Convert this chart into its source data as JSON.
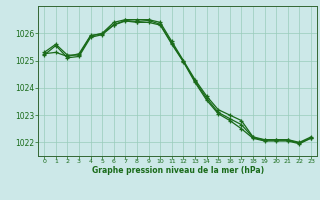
{
  "title": "Graphe pression niveau de la mer (hPa)",
  "background_color": "#cce8e8",
  "grid_color": "#99ccbb",
  "line_color": "#1a6b1a",
  "spine_color": "#336633",
  "xlim": [
    -0.5,
    23.5
  ],
  "ylim": [
    1021.5,
    1027.0
  ],
  "yticks": [
    1022,
    1023,
    1024,
    1025,
    1026
  ],
  "xticks": [
    0,
    1,
    2,
    3,
    4,
    5,
    6,
    7,
    8,
    9,
    10,
    11,
    12,
    13,
    14,
    15,
    16,
    17,
    18,
    19,
    20,
    21,
    22,
    23
  ],
  "series1": {
    "x": [
      0,
      1,
      2,
      3,
      4,
      5,
      6,
      7,
      8,
      9,
      10,
      11,
      12,
      13,
      14,
      15,
      16,
      17,
      18,
      19,
      20,
      21,
      22,
      23
    ],
    "y": [
      1025.3,
      1025.6,
      1025.2,
      1025.2,
      1025.9,
      1026.0,
      1026.4,
      1026.5,
      1026.5,
      1026.5,
      1026.4,
      1025.7,
      1025.0,
      1024.3,
      1023.7,
      1023.2,
      1023.0,
      1022.8,
      1022.2,
      1022.1,
      1022.1,
      1022.1,
      1022.0,
      1022.2
    ]
  },
  "series2": {
    "x": [
      0,
      1,
      2,
      3,
      4,
      5,
      6,
      7,
      8,
      9,
      10,
      11,
      12,
      13,
      14,
      15,
      16,
      17,
      18,
      19,
      20,
      21,
      22,
      23
    ],
    "y": [
      1025.2,
      1025.55,
      1025.1,
      1025.15,
      1025.85,
      1025.95,
      1026.3,
      1026.45,
      1026.4,
      1026.4,
      1026.3,
      1025.6,
      1024.95,
      1024.2,
      1023.55,
      1023.05,
      1022.8,
      1022.5,
      1022.15,
      1022.05,
      1022.05,
      1022.05,
      1021.95,
      1022.15
    ]
  },
  "series3": {
    "x": [
      0,
      1,
      2,
      3,
      4,
      5,
      6,
      7,
      8,
      9,
      10,
      11,
      12,
      13,
      14,
      15,
      16,
      17,
      18,
      19,
      20,
      21,
      22,
      23
    ],
    "y": [
      1025.25,
      1025.3,
      1025.15,
      1025.25,
      1025.92,
      1025.98,
      1026.32,
      1026.47,
      1026.43,
      1026.47,
      1026.33,
      1025.63,
      1024.97,
      1024.25,
      1023.62,
      1023.1,
      1022.87,
      1022.65,
      1022.18,
      1022.08,
      1022.08,
      1022.08,
      1021.97,
      1022.17
    ]
  }
}
